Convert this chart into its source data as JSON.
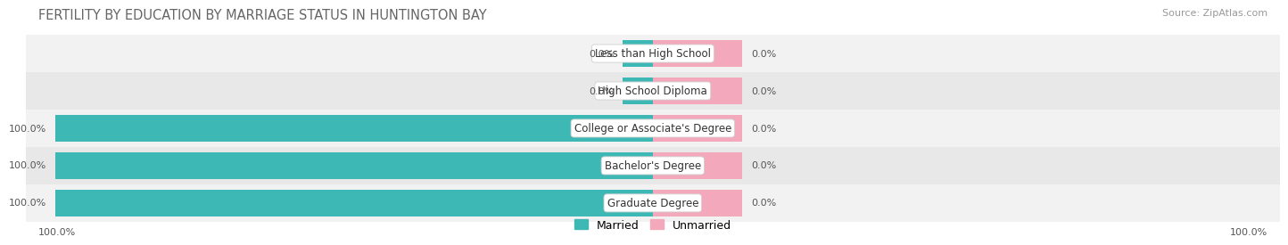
{
  "title": "FERTILITY BY EDUCATION BY MARRIAGE STATUS IN HUNTINGTON BAY",
  "source": "Source: ZipAtlas.com",
  "categories": [
    "Less than High School",
    "High School Diploma",
    "College or Associate's Degree",
    "Bachelor's Degree",
    "Graduate Degree"
  ],
  "married_values": [
    0.0,
    0.0,
    100.0,
    100.0,
    100.0
  ],
  "unmarried_values": [
    0.0,
    0.0,
    0.0,
    0.0,
    0.0
  ],
  "married_color": "#3db8b5",
  "unmarried_color": "#f4a8bc",
  "row_bg_light": "#f2f2f2",
  "row_bg_dark": "#e8e8e8",
  "label_fontsize": 8.5,
  "value_fontsize": 8.0,
  "title_fontsize": 10.5,
  "legend_fontsize": 9,
  "source_fontsize": 8,
  "fig_width": 14.06,
  "fig_height": 2.69,
  "background_color": "#ffffff",
  "pink_stub_pct": 15.0,
  "teal_stub_pct": 5.0
}
